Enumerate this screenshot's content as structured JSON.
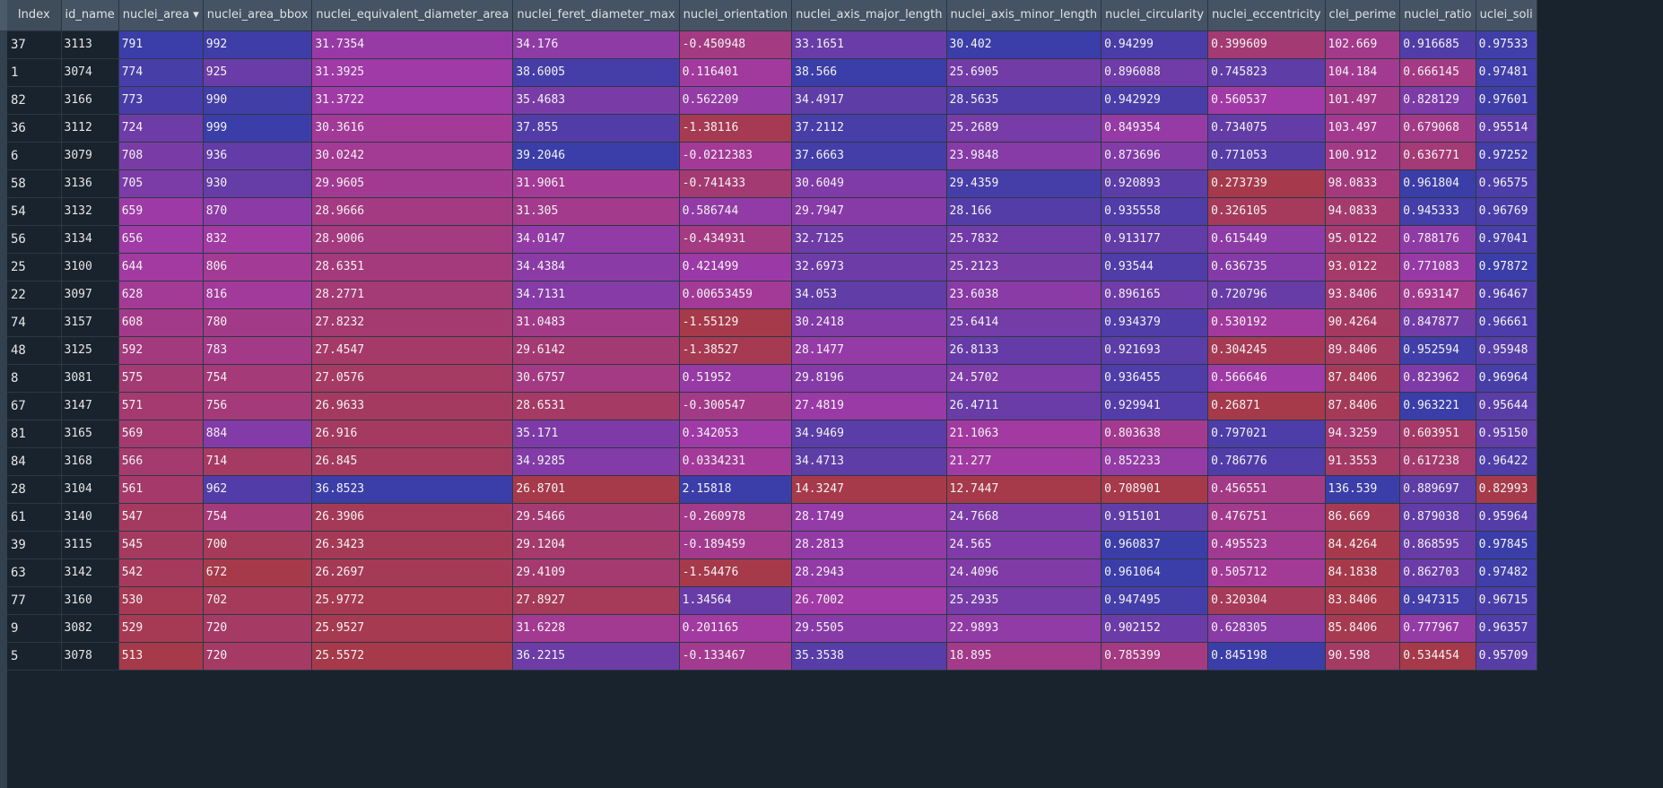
{
  "table": {
    "sorted_column": "nuclei_area",
    "sort_order": "descending",
    "columns": [
      "Index",
      "id_name",
      "nuclei_area",
      "nuclei_area_bbox",
      "nuclei_equivalent_diameter_area",
      "nuclei_feret_diameter_max",
      "nuclei_orientation",
      "nuclei_axis_major_length",
      "nuclei_axis_minor_length",
      "nuclei_circularity",
      "nuclei_eccentricity",
      "clei_perime",
      "nuclei_ratio",
      "uclei_soli"
    ],
    "rows": [
      [
        "37",
        "3113",
        "791",
        "992",
        "31.7354",
        "34.176",
        "-0.450948",
        "33.1651",
        "30.402",
        "0.94299",
        "0.399609",
        "102.669",
        "0.916685",
        "0.97533"
      ],
      [
        "1",
        "3074",
        "774",
        "925",
        "31.3925",
        "38.6005",
        "0.116401",
        "38.566",
        "25.6905",
        "0.896088",
        "0.745823",
        "104.184",
        "0.666145",
        "0.97481"
      ],
      [
        "82",
        "3166",
        "773",
        "990",
        "31.3722",
        "35.4683",
        "0.562209",
        "34.4917",
        "28.5635",
        "0.942929",
        "0.560537",
        "101.497",
        "0.828129",
        "0.97601"
      ],
      [
        "36",
        "3112",
        "724",
        "999",
        "30.3616",
        "37.855",
        "-1.38116",
        "37.2112",
        "25.2689",
        "0.849354",
        "0.734075",
        "103.497",
        "0.679068",
        "0.95514"
      ],
      [
        "6",
        "3079",
        "708",
        "936",
        "30.0242",
        "39.2046",
        "-0.0212383",
        "37.6663",
        "23.9848",
        "0.873696",
        "0.771053",
        "100.912",
        "0.636771",
        "0.97252"
      ],
      [
        "58",
        "3136",
        "705",
        "930",
        "29.9605",
        "31.9061",
        "-0.741433",
        "30.6049",
        "29.4359",
        "0.920893",
        "0.273739",
        "98.0833",
        "0.961804",
        "0.96575"
      ],
      [
        "54",
        "3132",
        "659",
        "870",
        "28.9666",
        "31.305",
        "0.586744",
        "29.7947",
        "28.166",
        "0.935558",
        "0.326105",
        "94.0833",
        "0.945333",
        "0.96769"
      ],
      [
        "56",
        "3134",
        "656",
        "832",
        "28.9006",
        "34.0147",
        "-0.434931",
        "32.7125",
        "25.7832",
        "0.913177",
        "0.615449",
        "95.0122",
        "0.788176",
        "0.97041"
      ],
      [
        "25",
        "3100",
        "644",
        "806",
        "28.6351",
        "34.4384",
        "0.421499",
        "32.6973",
        "25.2123",
        "0.93544",
        "0.636735",
        "93.0122",
        "0.771083",
        "0.97872"
      ],
      [
        "22",
        "3097",
        "628",
        "816",
        "28.2771",
        "34.7131",
        "0.00653459",
        "34.053",
        "23.6038",
        "0.896165",
        "0.720796",
        "93.8406",
        "0.693147",
        "0.96467"
      ],
      [
        "74",
        "3157",
        "608",
        "780",
        "27.8232",
        "31.0483",
        "-1.55129",
        "30.2418",
        "25.6414",
        "0.934379",
        "0.530192",
        "90.4264",
        "0.847877",
        "0.96661"
      ],
      [
        "48",
        "3125",
        "592",
        "783",
        "27.4547",
        "29.6142",
        "-1.38527",
        "28.1477",
        "26.8133",
        "0.921693",
        "0.304245",
        "89.8406",
        "0.952594",
        "0.95948"
      ],
      [
        "8",
        "3081",
        "575",
        "754",
        "27.0576",
        "30.6757",
        "0.51952",
        "29.8196",
        "24.5702",
        "0.936455",
        "0.566646",
        "87.8406",
        "0.823962",
        "0.96964"
      ],
      [
        "67",
        "3147",
        "571",
        "756",
        "26.9633",
        "28.6531",
        "-0.300547",
        "27.4819",
        "26.4711",
        "0.929941",
        "0.26871",
        "87.8406",
        "0.963221",
        "0.95644"
      ],
      [
        "81",
        "3165",
        "569",
        "884",
        "26.916",
        "35.171",
        "0.342053",
        "34.9469",
        "21.1063",
        "0.803638",
        "0.797021",
        "94.3259",
        "0.603951",
        "0.95150"
      ],
      [
        "84",
        "3168",
        "566",
        "714",
        "26.845",
        "34.9285",
        "0.0334231",
        "34.4713",
        "21.277",
        "0.852233",
        "0.786776",
        "91.3553",
        "0.617238",
        "0.96422"
      ],
      [
        "28",
        "3104",
        "561",
        "962",
        "36.8523",
        "26.8701",
        "2.15818",
        "14.3247",
        "12.7447",
        "0.708901",
        "0.456551",
        "136.539",
        "0.889697",
        "0.82993"
      ],
      [
        "61",
        "3140",
        "547",
        "754",
        "26.3906",
        "29.5466",
        "-0.260978",
        "28.1749",
        "24.7668",
        "0.915101",
        "0.476751",
        "86.669",
        "0.879038",
        "0.95964"
      ],
      [
        "39",
        "3115",
        "545",
        "700",
        "26.3423",
        "29.1204",
        "-0.189459",
        "28.2813",
        "24.565",
        "0.960837",
        "0.495523",
        "84.4264",
        "0.868595",
        "0.97845"
      ],
      [
        "63",
        "3142",
        "542",
        "672",
        "26.2697",
        "29.4109",
        "-1.54476",
        "28.2943",
        "24.4096",
        "0.961064",
        "0.505712",
        "84.1838",
        "0.862703",
        "0.97482"
      ],
      [
        "77",
        "3160",
        "530",
        "702",
        "25.9772",
        "27.8927",
        "1.34564",
        "26.7002",
        "25.2935",
        "0.947495",
        "0.320304",
        "83.8406",
        "0.947315",
        "0.96715"
      ],
      [
        "9",
        "3082",
        "529",
        "720",
        "25.9527",
        "31.6228",
        "0.201165",
        "29.5505",
        "22.9893",
        "0.902152",
        "0.628305",
        "85.8406",
        "0.777967",
        "0.96357"
      ],
      [
        "5",
        "3078",
        "513",
        "720",
        "25.5572",
        "36.2215",
        "-0.133467",
        "35.3538",
        "18.895",
        "0.785399",
        "0.845198",
        "90.598",
        "0.534454",
        "0.95709"
      ]
    ]
  },
  "colors": {
    "background": "#19232d",
    "header_background": "#455364",
    "header_text": "#dfe1e2",
    "gradient_low": "#3b3ea8",
    "gradient_mid": "#a23aa6",
    "gradient_high": "#a63a4a"
  }
}
